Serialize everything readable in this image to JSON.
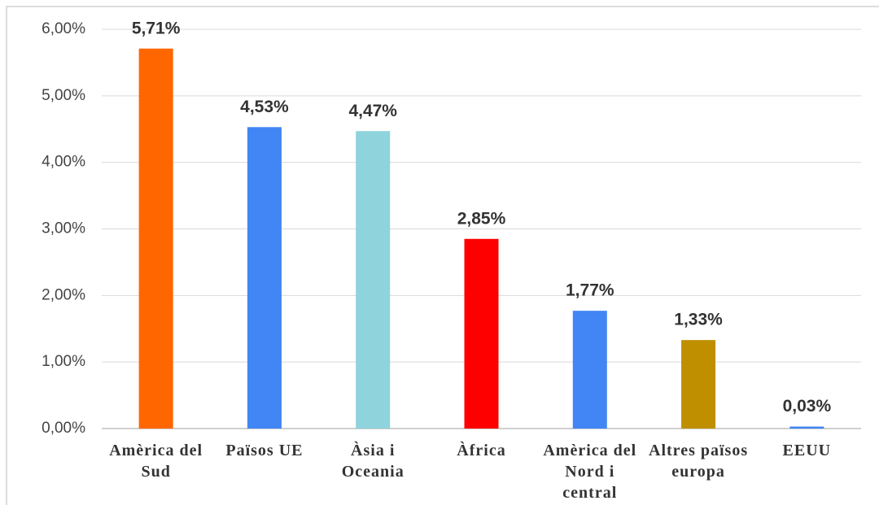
{
  "chart_data": {
    "type": "bar",
    "categories": [
      "Amèrica del Sud",
      "Països UE",
      "Àsia i Oceania",
      "Àfrica",
      "Amèrica del Nord i central",
      "Altres països europa",
      "EEUU"
    ],
    "values": [
      5.71,
      4.53,
      4.47,
      2.85,
      1.77,
      1.33,
      0.03
    ],
    "value_labels": [
      "5,71%",
      "4,53%",
      "4,47%",
      "2,85%",
      "1,77%",
      "1,33%",
      "0,03%"
    ],
    "colors": [
      "#ff6600",
      "#4285f4",
      "#8fd3dc",
      "#ff0000",
      "#4285f4",
      "#bf8f00",
      "#4285f4"
    ],
    "ylim": [
      0,
      6
    ],
    "yticks": [
      {
        "value": 0,
        "label": "0,00%"
      },
      {
        "value": 1,
        "label": "1,00%"
      },
      {
        "value": 2,
        "label": "2,00%"
      },
      {
        "value": 3,
        "label": "3,00%"
      },
      {
        "value": 4,
        "label": "4,00%"
      },
      {
        "value": 5,
        "label": "5,00%"
      },
      {
        "value": 6,
        "label": "6,00%"
      }
    ],
    "grid": true
  }
}
